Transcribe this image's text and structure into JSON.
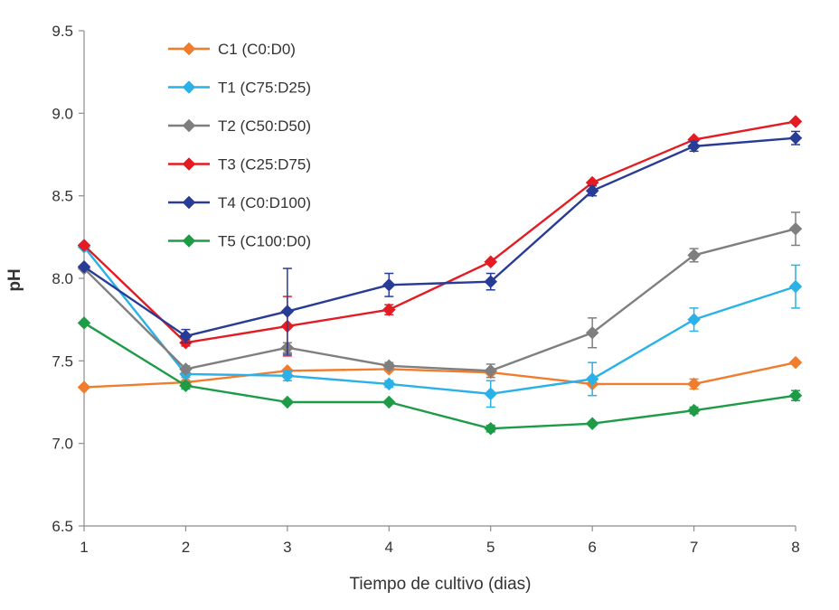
{
  "chart_data": {
    "type": "line",
    "xlabel": "Tiempo de cultivo (dias)",
    "ylabel": "pH",
    "x": [
      1,
      2,
      3,
      4,
      5,
      6,
      7,
      8
    ],
    "ylim": [
      6.5,
      9.5
    ],
    "yticks": [
      "6.5",
      "7.0",
      "7.5",
      "8.0",
      "8.5",
      "9.0",
      "9.5"
    ],
    "xticks": [
      "1",
      "2",
      "3",
      "4",
      "5",
      "6",
      "7",
      "8"
    ],
    "grid": false,
    "legend_position": "top-left",
    "series": [
      {
        "name": "C1 (C0:D0)",
        "color": "#f07d2e",
        "values": [
          7.34,
          7.37,
          7.44,
          7.45,
          7.43,
          7.36,
          7.36,
          7.49
        ],
        "errors": [
          0,
          0,
          0,
          0.01,
          0.01,
          0,
          0.03,
          0.01
        ]
      },
      {
        "name": "T1 (C75:D25)",
        "color": "#29b1e8",
        "values": [
          8.19,
          7.42,
          7.41,
          7.36,
          7.3,
          7.39,
          7.75,
          7.95
        ],
        "errors": [
          0,
          0.02,
          0.03,
          0.02,
          0.08,
          0.1,
          0.07,
          0.13
        ]
      },
      {
        "name": "T2 (C50:D50)",
        "color": "#7f7f7f",
        "values": [
          8.06,
          7.45,
          7.58,
          7.47,
          7.44,
          7.67,
          8.14,
          8.3
        ],
        "errors": [
          0,
          0.02,
          0.03,
          0.02,
          0.04,
          0.09,
          0.04,
          0.1
        ]
      },
      {
        "name": "T3 (C25:D75)",
        "color": "#e31b23",
        "values": [
          8.2,
          7.61,
          7.71,
          7.81,
          8.1,
          8.58,
          8.84,
          8.95
        ],
        "errors": [
          0,
          0.02,
          0.18,
          0.03,
          0,
          0,
          0,
          0
        ]
      },
      {
        "name": "T4 (C0:D100)",
        "color": "#283c96",
        "values": [
          8.07,
          7.65,
          7.8,
          7.96,
          7.98,
          8.53,
          8.8,
          8.85
        ],
        "errors": [
          0,
          0.04,
          0.26,
          0.07,
          0.05,
          0.03,
          0.03,
          0.04
        ]
      },
      {
        "name": "T5 (C100:D0)",
        "color": "#1e9b47",
        "values": [
          7.73,
          7.35,
          7.25,
          7.25,
          7.09,
          7.12,
          7.2,
          7.29
        ],
        "errors": [
          0,
          0.02,
          0,
          0,
          0.02,
          0.01,
          0.02,
          0.03
        ]
      }
    ]
  }
}
